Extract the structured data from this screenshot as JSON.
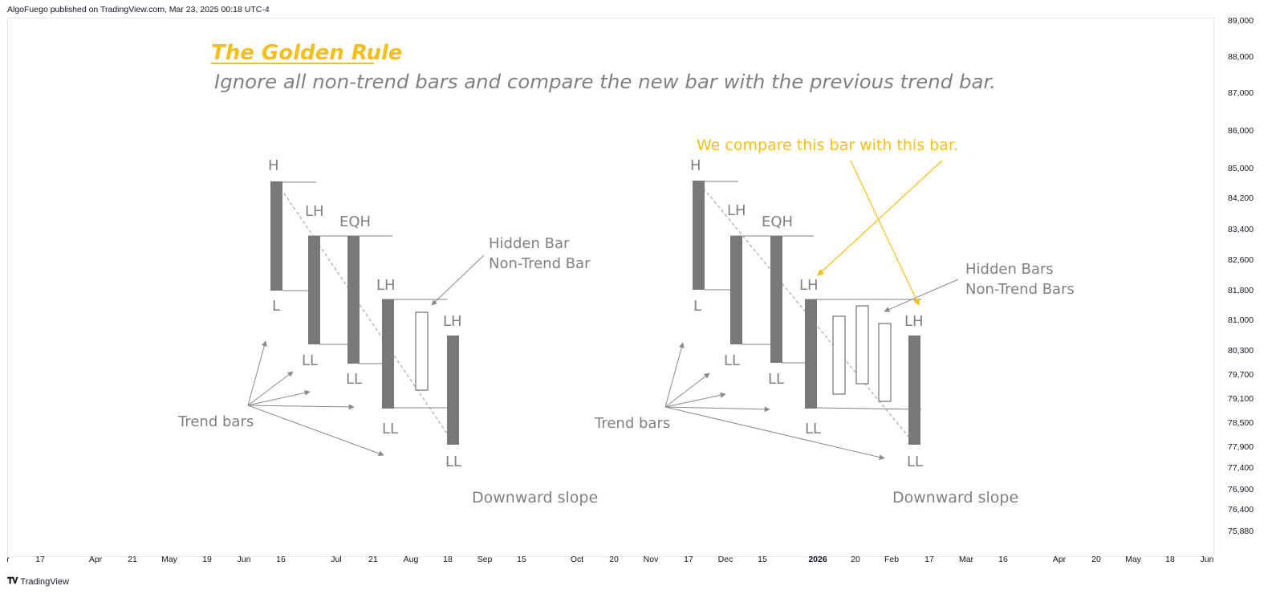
{
  "header": {
    "publisher": "AlgoFuego published on TradingView.com, Mar 23, 2025 00:18 UTC-4"
  },
  "footer": {
    "logo_icon": "tradingview-logo-icon",
    "brand": "TradingView"
  },
  "colors": {
    "accent": "#f5be19",
    "bar": "#787878",
    "text": "#808080",
    "arrow": "#8a8a8a"
  },
  "chart_data": {
    "type": "bar",
    "price_axis": {
      "ticks": [
        "89,000",
        "88,000",
        "87,000",
        "86,000",
        "85,000",
        "84,200",
        "83,400",
        "82,600",
        "81,800",
        "81,000",
        "80,300",
        "79,700",
        "79,100",
        "78,500",
        "77,900",
        "77,400",
        "76,900",
        "76,400",
        "75,880"
      ]
    },
    "time_axis": {
      "ticks": [
        {
          "label": "r"
        },
        {
          "label": "17"
        },
        {
          "label": "Apr"
        },
        {
          "label": "21"
        },
        {
          "label": "May"
        },
        {
          "label": "19"
        },
        {
          "label": "Jun"
        },
        {
          "label": "16"
        },
        {
          "label": "Jul"
        },
        {
          "label": "21"
        },
        {
          "label": "Aug"
        },
        {
          "label": "18"
        },
        {
          "label": "Sep"
        },
        {
          "label": "15"
        },
        {
          "label": "Oct"
        },
        {
          "label": "20"
        },
        {
          "label": "Nov"
        },
        {
          "label": "17"
        },
        {
          "label": "Dec"
        },
        {
          "label": "15"
        },
        {
          "label": "2026",
          "bold": true
        },
        {
          "label": "20"
        },
        {
          "label": "Feb"
        },
        {
          "label": "17"
        },
        {
          "label": "Mar"
        },
        {
          "label": "16"
        },
        {
          "label": "Apr"
        },
        {
          "label": "20"
        },
        {
          "label": "May"
        },
        {
          "label": "18"
        },
        {
          "label": "Jun"
        }
      ]
    },
    "title": "The Golden Rule",
    "subtitle": "Ignore all non-trend bars and compare the new bar with the previous trend bar.",
    "annotations": {
      "left": {
        "labels": [
          "H",
          "L",
          "LH",
          "LL",
          "EQH",
          "LL",
          "LH",
          "LL",
          "LH",
          "LL"
        ],
        "hidden_note": [
          "Hidden Bar",
          "Non-Trend Bar"
        ],
        "trend_bars": "Trend bars",
        "slope": "Downward slope"
      },
      "right": {
        "compare_note": "We compare this bar with this bar.",
        "labels": [
          "H",
          "L",
          "LH",
          "LL",
          "EQH",
          "LL",
          "LH",
          "LL",
          "LH",
          "LL"
        ],
        "hidden_note": [
          "Hidden Bars",
          "Non-Trend Bars"
        ],
        "trend_bars": "Trend bars",
        "slope": "Downward slope"
      }
    }
  }
}
